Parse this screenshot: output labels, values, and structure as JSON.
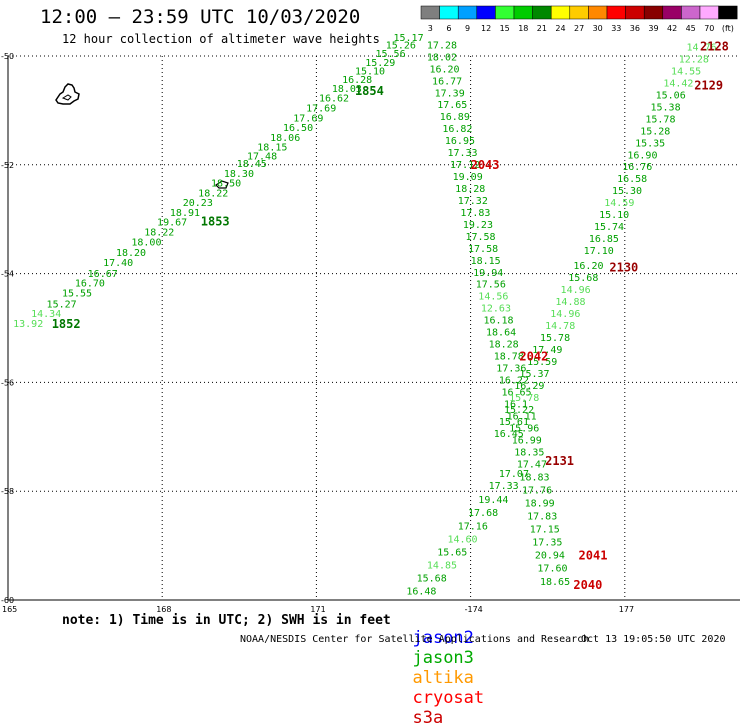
{
  "header": {
    "title": "12:00 – 23:59 UTC 10/03/2020",
    "subtitle": "12 hour collection of altimeter wave heights"
  },
  "colorbar": {
    "bins": [
      {
        "label": "3",
        "color": "#7f7f7f"
      },
      {
        "label": "6",
        "color": "#00ffff"
      },
      {
        "label": "9",
        "color": "#00a0ff"
      },
      {
        "label": "12",
        "color": "#0000ff"
      },
      {
        "label": "15",
        "color": "#33ff33"
      },
      {
        "label": "18",
        "color": "#00cc00"
      },
      {
        "label": "21",
        "color": "#008800"
      },
      {
        "label": "24",
        "color": "#ffff00"
      },
      {
        "label": "27",
        "color": "#ffcc00"
      },
      {
        "label": "30",
        "color": "#ff8800"
      },
      {
        "label": "33",
        "color": "#ff0000"
      },
      {
        "label": "36",
        "color": "#cc0000"
      },
      {
        "label": "39",
        "color": "#880000"
      },
      {
        "label": "42",
        "color": "#990066"
      },
      {
        "label": "45",
        "color": "#cc66cc"
      },
      {
        "label": "70",
        "color": "#ffaaff"
      },
      {
        "label": "(ft)",
        "color": "#000000"
      }
    ]
  },
  "axes": {
    "lon_ticks": [
      "165",
      "168",
      "171",
      "-174",
      "177"
    ],
    "lat_ticks": [
      "-50",
      "-52",
      "-54",
      "-56",
      "-58",
      "-60"
    ]
  },
  "tracks": [
    {
      "id": "jason3-pass-a",
      "color": "#00a000",
      "labels": [
        {
          "text": "1854",
          "lon": 171.75,
          "lat": -50.72
        },
        {
          "text": "1853",
          "lon": 168.75,
          "lat": -53.12
        },
        {
          "text": "1852",
          "lon": 165.85,
          "lat": -55.0
        }
      ],
      "heights": [
        {
          "v": "13.92",
          "lon": 165.1,
          "lat": -54.98,
          "c": "#55dd55"
        },
        {
          "v": "14.34",
          "lon": 165.45,
          "lat": -54.8,
          "c": "#55dd55"
        },
        {
          "v": "15.27",
          "lon": 165.75,
          "lat": -54.62
        },
        {
          "v": "15.55",
          "lon": 166.05,
          "lat": -54.42
        },
        {
          "v": "16.70",
          "lon": 166.3,
          "lat": -54.24
        },
        {
          "v": "16.67",
          "lon": 166.55,
          "lat": -54.06
        },
        {
          "v": "17.40",
          "lon": 166.85,
          "lat": -53.86
        },
        {
          "v": "18.20",
          "lon": 167.1,
          "lat": -53.68
        },
        {
          "v": "18.00",
          "lon": 167.4,
          "lat": -53.48
        },
        {
          "v": "18.22",
          "lon": 167.65,
          "lat": -53.3
        },
        {
          "v": "19.67",
          "lon": 167.9,
          "lat": -53.12
        },
        {
          "v": "18.91",
          "lon": 168.15,
          "lat": -52.94
        },
        {
          "v": "20.23",
          "lon": 168.4,
          "lat": -52.76
        },
        {
          "v": "18.22",
          "lon": 168.7,
          "lat": -52.58
        },
        {
          "v": "18.50",
          "lon": 168.95,
          "lat": -52.4
        },
        {
          "v": "18.30",
          "lon": 169.2,
          "lat": -52.22
        },
        {
          "v": "18.45",
          "lon": 169.45,
          "lat": -52.04
        },
        {
          "v": "17.48",
          "lon": 169.65,
          "lat": -51.9
        },
        {
          "v": "18.15",
          "lon": 169.85,
          "lat": -51.74
        },
        {
          "v": "18.06",
          "lon": 170.1,
          "lat": -51.56
        },
        {
          "v": "16.50",
          "lon": 170.35,
          "lat": -51.38
        },
        {
          "v": "17.69",
          "lon": 170.55,
          "lat": -51.2
        },
        {
          "v": "17.69",
          "lon": 170.8,
          "lat": -51.02
        },
        {
          "v": "16.62",
          "lon": 171.05,
          "lat": -50.84
        },
        {
          "v": "18.03",
          "lon": 171.3,
          "lat": -50.66
        },
        {
          "v": "16.28",
          "lon": 171.5,
          "lat": -50.5
        },
        {
          "v": "15.10",
          "lon": 171.75,
          "lat": -50.34
        },
        {
          "v": "15.29",
          "lon": 171.95,
          "lat": -50.18
        },
        {
          "v": "15.56",
          "lon": 172.15,
          "lat": -50.02
        },
        {
          "v": "15.26",
          "lon": 172.35,
          "lat": -49.86
        },
        {
          "v": "15.17",
          "lon": 172.5,
          "lat": -49.72
        }
      ]
    },
    {
      "id": "jason3-pass-b",
      "color": "#00a000",
      "labels": [],
      "heights": [
        {
          "v": "17.28",
          "lon": 173.15,
          "lat": -49.86
        },
        {
          "v": "18.02",
          "lon": 173.15,
          "lat": -50.08
        },
        {
          "v": "16.20",
          "lon": 173.2,
          "lat": -50.3
        },
        {
          "v": "16.77",
          "lon": 173.25,
          "lat": -50.52
        },
        {
          "v": "17.39",
          "lon": 173.3,
          "lat": -50.74
        },
        {
          "v": "17.65",
          "lon": 173.35,
          "lat": -50.96
        },
        {
          "v": "16.89",
          "lon": 173.4,
          "lat": -51.18
        },
        {
          "v": "16.82",
          "lon": 173.45,
          "lat": -51.4
        },
        {
          "v": "16.95",
          "lon": 173.5,
          "lat": -51.62
        },
        {
          "v": "17.33",
          "lon": 173.55,
          "lat": -51.84
        },
        {
          "v": "17.12",
          "lon": 173.6,
          "lat": -52.06
        },
        {
          "v": "19.09",
          "lon": 173.65,
          "lat": -52.28
        },
        {
          "v": "18.28",
          "lon": 173.7,
          "lat": -52.5
        },
        {
          "v": "17.32",
          "lon": 173.75,
          "lat": -52.72
        },
        {
          "v": "17.83",
          "lon": 173.8,
          "lat": -52.94
        },
        {
          "v": "19.23",
          "lon": 173.85,
          "lat": -53.16
        },
        {
          "v": "17.58",
          "lon": 173.9,
          "lat": -53.38
        },
        {
          "v": "17.58",
          "lon": 173.95,
          "lat": -53.6
        },
        {
          "v": "18.15",
          "lon": 174.0,
          "lat": -53.82
        },
        {
          "v": "19.94",
          "lon": 174.05,
          "lat": -54.04
        },
        {
          "v": "17.56",
          "lon": 174.1,
          "lat": -54.26
        },
        {
          "v": "14.56",
          "lon": 174.15,
          "lat": -54.48,
          "c": "#55dd55"
        },
        {
          "v": "12.63",
          "lon": 174.2,
          "lat": -54.7,
          "c": "#55dd55"
        },
        {
          "v": "16.18",
          "lon": 174.25,
          "lat": -54.92
        },
        {
          "v": "18.64",
          "lon": 174.3,
          "lat": -55.14
        },
        {
          "v": "18.28",
          "lon": 174.35,
          "lat": -55.36
        },
        {
          "v": "18.78",
          "lon": 174.45,
          "lat": -55.58
        },
        {
          "v": "17.36",
          "lon": 174.5,
          "lat": -55.8
        },
        {
          "v": "16.22",
          "lon": 174.55,
          "lat": -56.02
        },
        {
          "v": "16.65",
          "lon": 174.6,
          "lat": -56.24
        },
        {
          "v": "16.1",
          "lon": 174.65,
          "lat": -56.46
        },
        {
          "v": "16.11",
          "lon": 174.7,
          "lat": -56.68
        },
        {
          "v": "15.96",
          "lon": 174.75,
          "lat": -56.9
        },
        {
          "v": "16.99",
          "lon": 174.8,
          "lat": -57.12
        },
        {
          "v": "18.35",
          "lon": 174.85,
          "lat": -57.34
        },
        {
          "v": "17.47",
          "lon": 174.9,
          "lat": -57.56
        },
        {
          "v": "18.83",
          "lon": 174.95,
          "lat": -57.8
        },
        {
          "v": "17.76",
          "lon": 175.0,
          "lat": -58.04
        },
        {
          "v": "18.99",
          "lon": 175.05,
          "lat": -58.28
        },
        {
          "v": "17.83",
          "lon": 175.1,
          "lat": -58.52
        },
        {
          "v": "17.15",
          "lon": 175.15,
          "lat": -58.76
        },
        {
          "v": "17.35",
          "lon": 175.2,
          "lat": -59.0
        },
        {
          "v": "20.94",
          "lon": 175.25,
          "lat": -59.24
        },
        {
          "v": "17.60",
          "lon": 175.3,
          "lat": -59.48
        },
        {
          "v": "18.65",
          "lon": 175.35,
          "lat": -59.72
        }
      ]
    },
    {
      "id": "jason3-pass-c",
      "color": "#00a000",
      "labels": [],
      "heights": [
        {
          "v": "17.07",
          "lon": 174.55,
          "lat": -57.74
        },
        {
          "v": "17.33",
          "lon": 174.35,
          "lat": -57.96
        },
        {
          "v": "19.44",
          "lon": 174.15,
          "lat": -58.22
        },
        {
          "v": "17.68",
          "lon": 173.95,
          "lat": -58.46
        },
        {
          "v": "17.16",
          "lon": 173.75,
          "lat": -58.7
        },
        {
          "v": "14.60",
          "lon": 173.55,
          "lat": -58.94,
          "c": "#55dd55"
        },
        {
          "v": "15.65",
          "lon": 173.35,
          "lat": -59.18
        },
        {
          "v": "14.85",
          "lon": 173.15,
          "lat": -59.42,
          "c": "#55dd55"
        },
        {
          "v": "15.68",
          "lon": 172.95,
          "lat": -59.66
        },
        {
          "v": "16.48",
          "lon": 172.75,
          "lat": -59.9
        }
      ]
    },
    {
      "id": "jason3-pass-d",
      "color": "#00a000",
      "labels": [],
      "heights": [
        {
          "v": "14.76",
          "lon": 178.2,
          "lat": -49.9,
          "c": "#55dd55"
        },
        {
          "v": "12.28",
          "lon": 178.05,
          "lat": -50.12,
          "c": "#55dd55"
        },
        {
          "v": "14.55",
          "lon": 177.9,
          "lat": -50.34,
          "c": "#55dd55"
        },
        {
          "v": "14.42",
          "lon": 177.75,
          "lat": -50.56,
          "c": "#55dd55"
        },
        {
          "v": "15.06",
          "lon": 177.6,
          "lat": -50.78
        },
        {
          "v": "15.38",
          "lon": 177.5,
          "lat": -51.0
        },
        {
          "v": "15.78",
          "lon": 177.4,
          "lat": -51.22
        },
        {
          "v": "15.28",
          "lon": 177.3,
          "lat": -51.44
        },
        {
          "v": "15.35",
          "lon": 177.2,
          "lat": -51.66
        },
        {
          "v": "16.90",
          "lon": 177.05,
          "lat": -51.88
        },
        {
          "v": "16.76",
          "lon": 176.95,
          "lat": -52.1
        },
        {
          "v": "16.58",
          "lon": 176.85,
          "lat": -52.32
        },
        {
          "v": "15.30",
          "lon": 176.75,
          "lat": -52.54
        },
        {
          "v": "14.59",
          "lon": 176.6,
          "lat": -52.76,
          "c": "#55dd55"
        },
        {
          "v": "15.10",
          "lon": 176.5,
          "lat": -52.98
        },
        {
          "v": "15.74",
          "lon": 176.4,
          "lat": -53.2
        },
        {
          "v": "16.85",
          "lon": 176.3,
          "lat": -53.42
        },
        {
          "v": "17.10",
          "lon": 176.2,
          "lat": -53.64
        },
        {
          "v": "16.20",
          "lon": 176.0,
          "lat": -53.92
        },
        {
          "v": "15.68",
          "lon": 175.9,
          "lat": -54.14
        },
        {
          "v": "14.96",
          "lon": 175.75,
          "lat": -54.36,
          "c": "#55dd55"
        },
        {
          "v": "14.88",
          "lon": 175.65,
          "lat": -54.58,
          "c": "#55dd55"
        },
        {
          "v": "14.96",
          "lon": 175.55,
          "lat": -54.8,
          "c": "#55dd55"
        },
        {
          "v": "14.78",
          "lon": 175.45,
          "lat": -55.02,
          "c": "#55dd55"
        },
        {
          "v": "15.78",
          "lon": 175.35,
          "lat": -55.24
        },
        {
          "v": "17.49",
          "lon": 175.2,
          "lat": -55.46
        },
        {
          "v": "15.59",
          "lon": 175.1,
          "lat": -55.68
        },
        {
          "v": "15.37",
          "lon": 174.95,
          "lat": -55.9
        },
        {
          "v": "16.29",
          "lon": 174.85,
          "lat": -56.12
        },
        {
          "v": "15.78",
          "lon": 174.75,
          "lat": -56.34,
          "c": "#55dd55"
        },
        {
          "v": "15.22",
          "lon": 174.65,
          "lat": -56.56
        },
        {
          "v": "15.61",
          "lon": 174.55,
          "lat": -56.78
        },
        {
          "v": "16.45",
          "lon": 174.45,
          "lat": -57.0
        }
      ]
    }
  ],
  "time_labels": [
    {
      "text": "2043",
      "lon": 174.0,
      "lat": -52.08,
      "color": "#cc0000"
    },
    {
      "text": "2042",
      "lon": 174.95,
      "lat": -55.6,
      "color": "#cc0000"
    },
    {
      "text": "2131",
      "lon": 175.45,
      "lat": -57.52,
      "color": "#990000"
    },
    {
      "text": "2130",
      "lon": 176.7,
      "lat": -53.96,
      "color": "#990000"
    },
    {
      "text": "2129",
      "lon": 178.35,
      "lat": -50.62,
      "color": "#990000"
    },
    {
      "text": "2128",
      "lon": 178.55,
      "lat": -49.9,
      "color": "#990000"
    },
    {
      "text": "2041",
      "lon": 176.1,
      "lat": -59.26,
      "color": "#cc0000"
    },
    {
      "text": "2040",
      "lon": 176.0,
      "lat": -59.8,
      "color": "#cc0000"
    }
  ],
  "footer": {
    "note": "note: 1) Time is in UTC; 2) SWH is in feet",
    "satellites": [
      {
        "name": "jason2",
        "color": "#0000ff"
      },
      {
        "name": "jason3",
        "color": "#00aa00"
      },
      {
        "name": "altika",
        "color": "#ff9900"
      },
      {
        "name": "cryosat",
        "color": "#ff0000"
      },
      {
        "name": "s3a",
        "color": "#cc0000"
      }
    ],
    "credit": "NOAA/NESDIS Center for Satellite Applications and Research",
    "timestamp": "Oct 13 19:05:50 UTC 2020"
  }
}
